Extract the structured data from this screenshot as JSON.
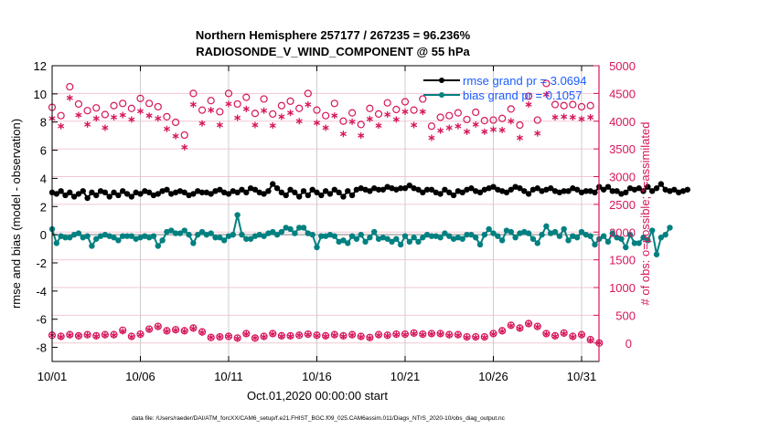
{
  "chart_data": {
    "type": "line",
    "title": [
      "Northern Hemisphere 257177 / 267235 = 96.236%",
      "RADIOSONDE_V_WIND_COMPONENT @ 55 hPa"
    ],
    "xlabel": "Oct.01,2020 00:00:00 start",
    "ylabel_left": "rmse and bias (model - observation)",
    "ylabel_right": "# of obs: o=possible; *=assimilated",
    "footnote": "data file: /Users/raeder/DAI/ATM_forcXX/CAM6_setup/f.e21.FHIST_BGC.f09_025.CAM6assim.011/Diags_NTrS_2020-10/obs_diag_output.nc",
    "x_unit": "days since 10/01",
    "x_range": [
      0,
      31
    ],
    "x_ticks": [
      0,
      5,
      10,
      15,
      20,
      25,
      30
    ],
    "x_tick_labels": [
      "10/01",
      "10/06",
      "10/11",
      "10/16",
      "10/21",
      "10/26",
      "10/31"
    ],
    "ylim_left": [
      -9,
      12
    ],
    "y_ticks_left": [
      12,
      10,
      8,
      6,
      4,
      2,
      0,
      -2,
      -4,
      -6,
      -8
    ],
    "ylim_right": [
      -333,
      5000
    ],
    "y_ticks_right": [
      5000,
      4500,
      4000,
      3500,
      3000,
      2500,
      2000,
      1500,
      1000,
      500,
      0
    ],
    "grid": "x-major gray; y at right ticks pink",
    "legend_position": "top-right",
    "legend": [
      {
        "name": "rmse grand pr = 3.0694",
        "color": "#000000"
      },
      {
        "name": "bias grand pr = 0.1057",
        "color": "#008080"
      }
    ],
    "colors": {
      "rmse": "#000000",
      "bias": "#008080",
      "obs": "#d6165b",
      "zero_line": "#bbbbbb",
      "grid_x": "#cccccc",
      "grid_y": "#f2c8d6",
      "legend_text": "#1a5cff"
    },
    "series": [
      {
        "name": "rmse",
        "axis": "left",
        "x_step_days": 0.25,
        "values": [
          3.0,
          2.9,
          3.1,
          2.8,
          3.0,
          2.7,
          2.9,
          3.1,
          2.6,
          3.0,
          2.8,
          3.1,
          3.0,
          2.7,
          3.0,
          2.8,
          3.1,
          2.9,
          2.7,
          3.0,
          2.9,
          3.1,
          3.0,
          2.8,
          2.9,
          3.1,
          3.2,
          2.9,
          3.0,
          3.1,
          3.0,
          2.8,
          2.9,
          3.1,
          3.0,
          3.0,
          2.9,
          3.1,
          3.2,
          3.0,
          2.9,
          3.1,
          3.0,
          3.2,
          3.0,
          3.3,
          3.2,
          3.0,
          2.9,
          3.1,
          3.6,
          3.3,
          3.0,
          2.8,
          3.2,
          3.0,
          2.7,
          3.1,
          2.8,
          3.2,
          3.0,
          2.8,
          3.1,
          2.9,
          3.2,
          3.0,
          2.7,
          3.1,
          2.8,
          3.2,
          3.3,
          3.2,
          3.1,
          3.3,
          3.2,
          3.2,
          3.4,
          3.3,
          3.2,
          3.3,
          3.3,
          3.5,
          3.3,
          3.2,
          3.0,
          3.2,
          3.2,
          3.0,
          2.9,
          3.2,
          3.0,
          2.8,
          3.1,
          3.0,
          3.2,
          3.3,
          3.1,
          3.0,
          3.2,
          3.3,
          3.4,
          3.2,
          3.1,
          3.0,
          3.2,
          3.4,
          3.3,
          3.1,
          2.9,
          3.2,
          3.3,
          3.1,
          3.2,
          3.3,
          3.1,
          3.0,
          3.1,
          3.1,
          3.3,
          3.2,
          3.0,
          3.1,
          3.1,
          3.0,
          3.4,
          3.2,
          3.4,
          3.1,
          3.1,
          2.9,
          3.0,
          3.3,
          3.2,
          3.3,
          3.1,
          3.4,
          3.1,
          3.3,
          3.6,
          3.2,
          3.1,
          3.2,
          3.0,
          3.1,
          3.2
        ]
      },
      {
        "name": "bias",
        "axis": "left",
        "x_step_days": 0.25,
        "values": [
          0.4,
          -0.6,
          -0.1,
          -0.2,
          -0.2,
          0.0,
          0.1,
          -0.2,
          -0.1,
          -0.8,
          -0.3,
          -0.1,
          0.0,
          -0.1,
          -0.2,
          -0.4,
          -0.1,
          -0.1,
          -0.1,
          -0.3,
          -0.2,
          -0.1,
          -0.2,
          -0.1,
          -0.8,
          -0.4,
          0.2,
          0.3,
          0.1,
          0.1,
          0.3,
          0.0,
          -0.6,
          0.0,
          0.2,
          0.0,
          0.1,
          -0.2,
          -0.2,
          -0.4,
          -0.1,
          0.0,
          1.4,
          0.0,
          -0.3,
          -0.3,
          -0.1,
          0.0,
          -0.1,
          0.1,
          0.2,
          0.0,
          0.2,
          0.5,
          0.4,
          0.1,
          0.5,
          0.5,
          0.1,
          0.0,
          -0.9,
          -0.1,
          -0.1,
          0.0,
          -0.1,
          -0.5,
          -0.4,
          -0.6,
          -0.1,
          -0.3,
          0.0,
          -0.5,
          -0.2,
          0.2,
          -0.3,
          -0.2,
          -0.3,
          -0.5,
          -0.3,
          -0.7,
          -0.1,
          -0.5,
          -0.2,
          -0.5,
          -0.2,
          0.0,
          -0.1,
          -0.1,
          -0.2,
          0.1,
          -0.1,
          -0.3,
          -0.2,
          -0.3,
          0.0,
          0.0,
          -0.2,
          -0.7,
          0.0,
          0.4,
          0.1,
          -0.1,
          -0.4,
          0.3,
          0.2,
          -0.2,
          0.1,
          0.2,
          0.1,
          -0.3,
          -0.6,
          0.0,
          0.6,
          0.1,
          0.2,
          -0.1,
          0.4,
          -0.4,
          -0.1,
          -0.2,
          0.2,
          0.0,
          -0.1,
          -0.7,
          -0.3,
          -0.1,
          -0.5,
          0.1,
          -0.2,
          -0.3,
          -0.9,
          0.0,
          -0.6,
          -0.6,
          -0.2,
          -0.4,
          0.3,
          -1.4,
          -0.2,
          0.0,
          0.5
        ]
      },
      {
        "name": "obs possible (upper)",
        "axis": "right",
        "marker": "o",
        "x_step_days": 0.5,
        "values": [
          4250,
          4100,
          4620,
          4310,
          4190,
          4240,
          4120,
          4280,
          4320,
          4230,
          4410,
          4320,
          4260,
          4080,
          3980,
          3750,
          4500,
          4200,
          4370,
          4170,
          4500,
          4310,
          4430,
          4140,
          4400,
          4130,
          4280,
          4360,
          4230,
          4500,
          4200,
          4100,
          4320,
          4000,
          4150,
          3940,
          4230,
          4130,
          4330,
          4210,
          4350,
          4200,
          4400,
          3910,
          4070,
          4100,
          4150,
          4030,
          4160,
          4010,
          4020,
          4050,
          4220,
          3930,
          4450,
          4020,
          4680,
          4300,
          4280,
          4300,
          4260,
          4280
        ]
      },
      {
        "name": "obs assimilated (upper)",
        "axis": "right",
        "marker": "*",
        "x_step_days": 0.5,
        "values": [
          4050,
          3910,
          4420,
          4110,
          3940,
          4050,
          3880,
          4070,
          4110,
          4030,
          4180,
          4100,
          4050,
          3860,
          3730,
          3530,
          4300,
          3960,
          4200,
          3930,
          4310,
          4060,
          4220,
          3930,
          4190,
          3920,
          4080,
          4150,
          4000,
          4300,
          3970,
          3880,
          4100,
          3770,
          3990,
          3740,
          4040,
          3920,
          4120,
          4030,
          4170,
          3930,
          4170,
          3700,
          3830,
          3880,
          3910,
          3810,
          3940,
          3810,
          3850,
          3840,
          4000,
          3700,
          4300,
          3780,
          4480,
          4070,
          4080,
          4070,
          4040,
          4070
        ]
      },
      {
        "name": "obs possible (lower)",
        "axis": "right",
        "marker": "o",
        "x_step_days": 0.5,
        "values": [
          140,
          120,
          150,
          130,
          150,
          130,
          150,
          150,
          230,
          120,
          160,
          250,
          300,
          220,
          240,
          220,
          270,
          200,
          100,
          110,
          120,
          90,
          170,
          90,
          120,
          170,
          130,
          130,
          140,
          160,
          140,
          130,
          150,
          130,
          150,
          120,
          100,
          150,
          140,
          160,
          160,
          180,
          160,
          170,
          170,
          150,
          150,
          110,
          110,
          110,
          170,
          220,
          320,
          270,
          350,
          300,
          170,
          130,
          180,
          120,
          150,
          60,
          0
        ]
      },
      {
        "name": "obs assimilated (lower)",
        "axis": "right",
        "marker": "*",
        "x_step_days": 0.5,
        "values": [
          140,
          110,
          140,
          130,
          140,
          120,
          140,
          140,
          210,
          110,
          150,
          240,
          290,
          210,
          230,
          210,
          260,
          190,
          100,
          110,
          120,
          80,
          160,
          90,
          110,
          160,
          120,
          120,
          140,
          150,
          130,
          120,
          140,
          120,
          140,
          110,
          90,
          140,
          130,
          150,
          150,
          170,
          150,
          160,
          160,
          140,
          140,
          100,
          100,
          100,
          160,
          210,
          310,
          260,
          340,
          290,
          160,
          120,
          170,
          110,
          140,
          50,
          0
        ]
      }
    ]
  }
}
